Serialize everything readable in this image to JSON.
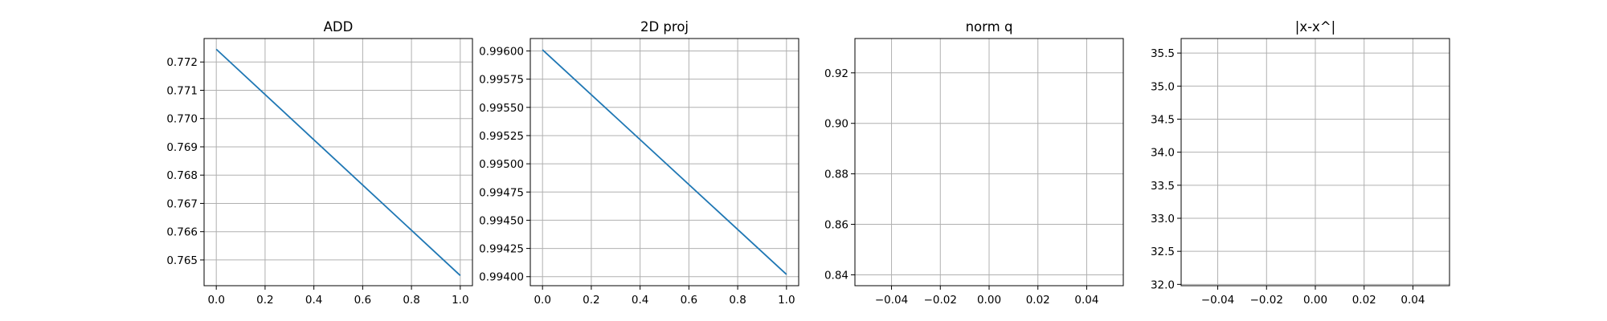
{
  "figure": {
    "background": "#ffffff",
    "series_color": "#1f77b4",
    "grid_color": "#b0b0b0"
  },
  "chart_data": [
    {
      "type": "line",
      "title": "ADD",
      "xlabel": "",
      "ylabel": "",
      "grid": true,
      "xlim": [
        -0.05,
        1.05
      ],
      "ylim": [
        0.76409,
        0.77283
      ],
      "xticks": [
        0.0,
        0.2,
        0.4,
        0.6,
        0.8,
        1.0
      ],
      "xtick_labels": [
        "0.0",
        "0.2",
        "0.4",
        "0.6",
        "0.8",
        "1.0"
      ],
      "yticks": [
        0.765,
        0.766,
        0.767,
        0.768,
        0.769,
        0.77,
        0.771,
        0.772
      ],
      "ytick_labels": [
        "0.765",
        "0.766",
        "0.767",
        "0.768",
        "0.769",
        "0.770",
        "0.771",
        "0.772"
      ],
      "series": [
        {
          "x": [
            0.0,
            1.0
          ],
          "y": [
            0.77245,
            0.76445
          ]
        }
      ]
    },
    {
      "type": "line",
      "title": "2D proj",
      "xlabel": "",
      "ylabel": "",
      "grid": true,
      "xlim": [
        -0.05,
        1.05
      ],
      "ylim": [
        0.99392,
        0.99611
      ],
      "xticks": [
        0.0,
        0.2,
        0.4,
        0.6,
        0.8,
        1.0
      ],
      "xtick_labels": [
        "0.0",
        "0.2",
        "0.4",
        "0.6",
        "0.8",
        "1.0"
      ],
      "yticks": [
        0.994,
        0.99425,
        0.9945,
        0.99475,
        0.995,
        0.99525,
        0.9955,
        0.99575,
        0.996
      ],
      "ytick_labels": [
        "0.99400",
        "0.99425",
        "0.99450",
        "0.99475",
        "0.99500",
        "0.99525",
        "0.99550",
        "0.99575",
        "0.99600"
      ],
      "series": [
        {
          "x": [
            0.0,
            1.0
          ],
          "y": [
            0.99601,
            0.99402
          ]
        }
      ]
    },
    {
      "type": "line",
      "title": "norm q",
      "xlabel": "",
      "ylabel": "",
      "grid": true,
      "xlim": [
        -0.055,
        0.055
      ],
      "ylim": [
        0.8357,
        0.9336
      ],
      "xticks": [
        -0.04,
        -0.02,
        0.0,
        0.02,
        0.04
      ],
      "xtick_labels": [
        "−0.04",
        "−0.02",
        "0.00",
        "0.02",
        "0.04"
      ],
      "yticks": [
        0.84,
        0.86,
        0.88,
        0.9,
        0.92
      ],
      "ytick_labels": [
        "0.84",
        "0.86",
        "0.88",
        "0.90",
        "0.92"
      ],
      "series": [
        {
          "x": [],
          "y": []
        }
      ]
    },
    {
      "type": "line",
      "title": "|x-x^|",
      "xlabel": "",
      "ylabel": "",
      "grid": true,
      "xlim": [
        -0.055,
        0.055
      ],
      "ylim": [
        31.98,
        35.72
      ],
      "xticks": [
        -0.04,
        -0.02,
        0.0,
        0.02,
        0.04
      ],
      "xtick_labels": [
        "−0.04",
        "−0.02",
        "0.00",
        "0.02",
        "0.04"
      ],
      "yticks": [
        32.0,
        32.5,
        33.0,
        33.5,
        34.0,
        34.5,
        35.0,
        35.5
      ],
      "ytick_labels": [
        "32.0",
        "32.5",
        "33.0",
        "33.5",
        "34.0",
        "34.5",
        "35.0",
        "35.5"
      ],
      "series": [
        {
          "x": [],
          "y": []
        }
      ]
    }
  ]
}
